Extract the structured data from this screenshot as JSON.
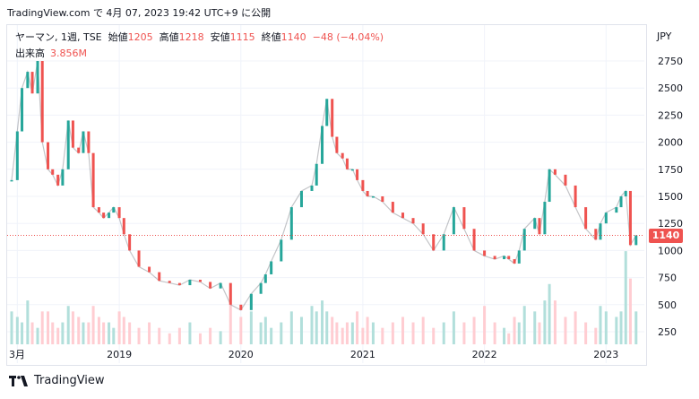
{
  "header": {
    "text": "TradingView.com で 4月 07, 2023 19:42 UTC+9 に公開"
  },
  "legend": {
    "symbol": "ヤーマン, 1週, TSE",
    "open_label": "始値",
    "open": "1205",
    "high_label": "高値",
    "high": "1218",
    "low_label": "安値",
    "low": "1115",
    "close_label": "終値",
    "close": "1140",
    "change": "−48 (−4.04%)"
  },
  "volume_legend": {
    "label": "出来高",
    "value": "3.856M"
  },
  "currency": "JPY",
  "last_price": "1140",
  "footer": {
    "brand": "TradingView",
    "logo": "tradingview-logo-icon"
  },
  "colors": {
    "up": "#26a69a",
    "down": "#ef5350",
    "up_vol": "#b2dfdb",
    "down_vol": "#ffcdd2",
    "grid": "#f0f3fa",
    "text": "#131722"
  },
  "chart_data": {
    "type": "line",
    "title": "ヤーマン, 1週, TSE",
    "price_ticks": [
      250,
      500,
      750,
      1000,
      1250,
      1500,
      1750,
      2000,
      2250,
      2500,
      2750
    ],
    "x_tick_labels": [
      "3月",
      "2019",
      "2020",
      "2021",
      "2022",
      "2023"
    ],
    "x_tick_dates": [
      "2018-03-01",
      "2019-01-01",
      "2020-01-01",
      "2021-01-01",
      "2022-01-01",
      "2023-01-01"
    ],
    "price_range": [
      100,
      2950
    ],
    "series": [
      {
        "x": [
          "2018-02-12",
          "2018-03-01",
          "2018-03-15",
          "2018-04-01",
          "2018-04-15",
          "2018-05-01",
          "2018-05-15",
          "2018-06-01",
          "2018-06-15",
          "2018-07-01",
          "2018-07-15",
          "2018-08-01",
          "2018-08-15",
          "2018-09-01",
          "2018-09-15",
          "2018-10-01",
          "2018-10-15",
          "2018-11-01",
          "2018-11-15",
          "2018-12-01",
          "2018-12-15",
          "2019-01-01",
          "2019-01-15",
          "2019-02-01",
          "2019-03-01",
          "2019-04-01",
          "2019-05-01",
          "2019-06-01",
          "2019-07-01",
          "2019-08-01",
          "2019-09-01",
          "2019-10-01",
          "2019-11-01",
          "2019-12-01",
          "2020-01-01",
          "2020-02-01",
          "2020-03-01",
          "2020-03-15",
          "2020-04-01",
          "2020-05-01",
          "2020-06-01",
          "2020-07-01",
          "2020-08-01",
          "2020-08-15",
          "2020-09-01",
          "2020-09-15",
          "2020-10-01",
          "2020-10-15",
          "2020-11-01",
          "2020-11-15",
          "2020-12-01",
          "2020-12-15",
          "2021-01-01",
          "2021-01-15",
          "2021-02-01",
          "2021-03-01",
          "2021-04-01",
          "2021-05-01",
          "2021-06-01",
          "2021-07-01",
          "2021-08-01",
          "2021-09-01",
          "2021-10-01",
          "2021-11-01",
          "2021-12-01",
          "2022-01-01",
          "2022-02-01",
          "2022-03-01",
          "2022-03-15",
          "2022-04-01",
          "2022-04-15",
          "2022-05-01",
          "2022-06-01",
          "2022-06-15",
          "2022-07-01",
          "2022-07-15",
          "2022-08-01",
          "2022-09-01",
          "2022-10-01",
          "2022-11-01",
          "2022-12-01",
          "2022-12-15",
          "2023-01-01",
          "2023-02-01",
          "2023-02-15",
          "2023-03-01",
          "2023-03-15",
          "2023-04-01"
        ],
        "values": [
          1650,
          2100,
          2500,
          2650,
          2450,
          2750,
          2000,
          1750,
          1700,
          1600,
          1750,
          2200,
          1950,
          1900,
          2100,
          1900,
          1400,
          1350,
          1300,
          1350,
          1400,
          1300,
          1150,
          1000,
          850,
          800,
          720,
          700,
          680,
          730,
          710,
          650,
          700,
          500,
          450,
          600,
          700,
          780,
          900,
          1100,
          1400,
          1550,
          1600,
          1800,
          2150,
          2400,
          2050,
          1900,
          1850,
          1750,
          1750,
          1650,
          1550,
          1500,
          1500,
          1450,
          1350,
          1300,
          1250,
          1150,
          1000,
          1150,
          1400,
          1200,
          1000,
          950,
          920,
          950,
          920,
          880,
          1000,
          1200,
          1300,
          1150,
          1450,
          1750,
          1700,
          1600,
          1400,
          1200,
          1100,
          1250,
          1350,
          1400,
          1500,
          1550,
          1050,
          1140
        ]
      }
    ],
    "volume_range": [
      0,
      900
    ],
    "volume": [
      300,
      250,
      200,
      400,
      200,
      150,
      300,
      300,
      200,
      150,
      200,
      350,
      300,
      250,
      200,
      200,
      350,
      250,
      200,
      200,
      150,
      300,
      250,
      200,
      150,
      200,
      150,
      100,
      150,
      200,
      100,
      150,
      120,
      500,
      250,
      300,
      200,
      250,
      150,
      200,
      300,
      250,
      350,
      300,
      400,
      300,
      250,
      200,
      150,
      200,
      200,
      300,
      150,
      250,
      200,
      150,
      200,
      250,
      200,
      250,
      150,
      200,
      300,
      200,
      250,
      350,
      200,
      150,
      100,
      250,
      200,
      350,
      300,
      200,
      400,
      550,
      400,
      250,
      300,
      200,
      150,
      350,
      300,
      250,
      300,
      850,
      600,
      300
    ]
  }
}
